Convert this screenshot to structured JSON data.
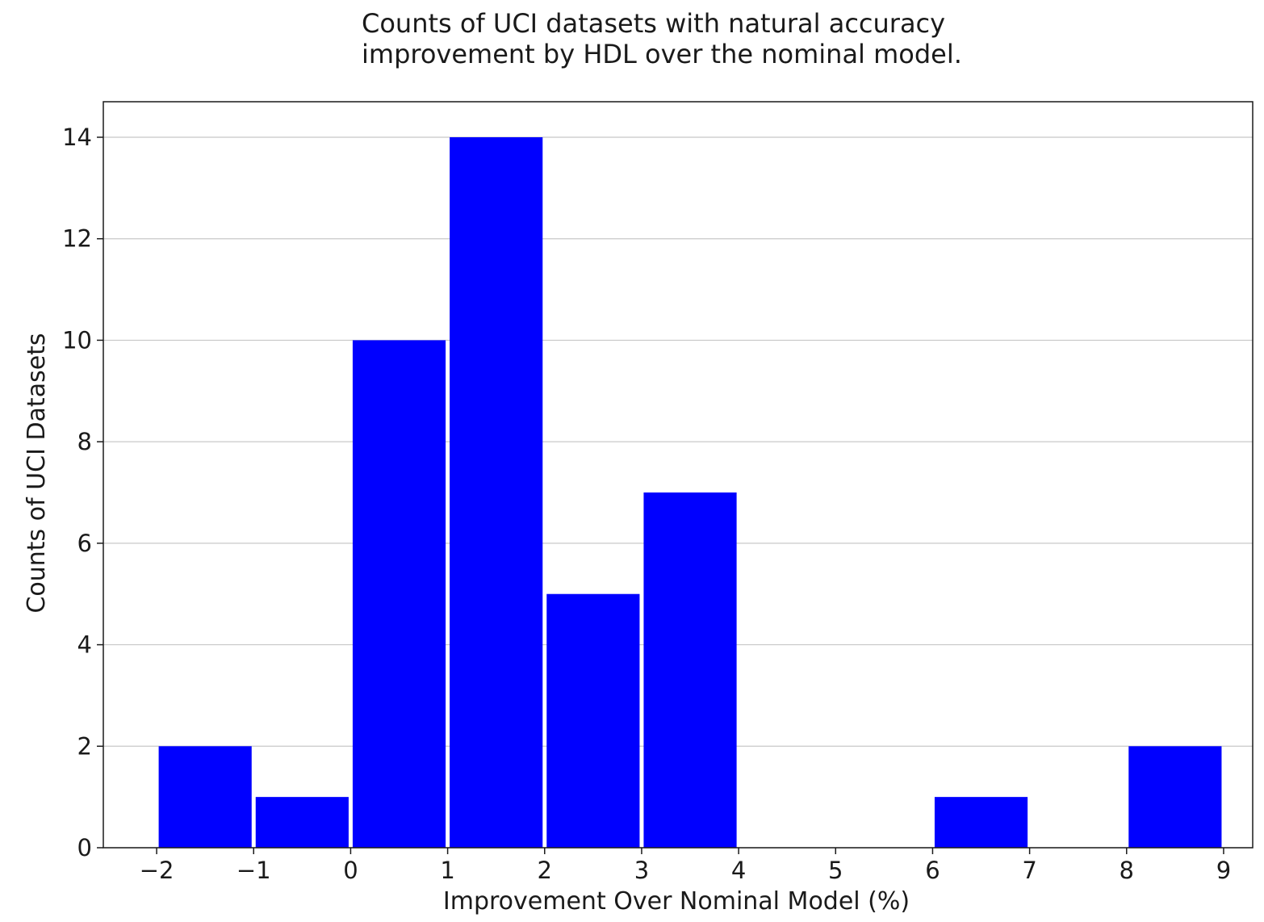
{
  "chart_data": {
    "type": "bar",
    "title_lines": [
      "Counts of UCI datasets with natural accuracy",
      "improvement by HDL over the nominal model."
    ],
    "xlabel": "Improvement Over Nominal Model (%)",
    "ylabel": "Counts of UCI Datasets",
    "xlim": [
      -2.55,
      9.3
    ],
    "ylim": [
      0,
      14.7
    ],
    "xticks": [
      -2,
      -1,
      0,
      1,
      2,
      3,
      4,
      5,
      6,
      7,
      8,
      9
    ],
    "xtick_labels": [
      "−2",
      "−1",
      "0",
      "1",
      "2",
      "3",
      "4",
      "5",
      "6",
      "7",
      "8",
      "9"
    ],
    "yticks": [
      0,
      2,
      4,
      6,
      8,
      10,
      12,
      14
    ],
    "ytick_labels": [
      "0",
      "2",
      "4",
      "6",
      "8",
      "10",
      "12",
      "14"
    ],
    "grid": "horizontal",
    "bar_color": "#0000ff",
    "bins": [
      {
        "x0": -2,
        "x1": -1,
        "count": 2
      },
      {
        "x0": -1,
        "x1": 0,
        "count": 1
      },
      {
        "x0": 0,
        "x1": 1,
        "count": 10
      },
      {
        "x0": 1,
        "x1": 2,
        "count": 14
      },
      {
        "x0": 2,
        "x1": 3,
        "count": 5
      },
      {
        "x0": 3,
        "x1": 4,
        "count": 7
      },
      {
        "x0": 4,
        "x1": 5,
        "count": 0
      },
      {
        "x0": 5,
        "x1": 6,
        "count": 0
      },
      {
        "x0": 6,
        "x1": 7,
        "count": 1
      },
      {
        "x0": 7,
        "x1": 8,
        "count": 0
      },
      {
        "x0": 8,
        "x1": 9,
        "count": 2
      }
    ]
  }
}
